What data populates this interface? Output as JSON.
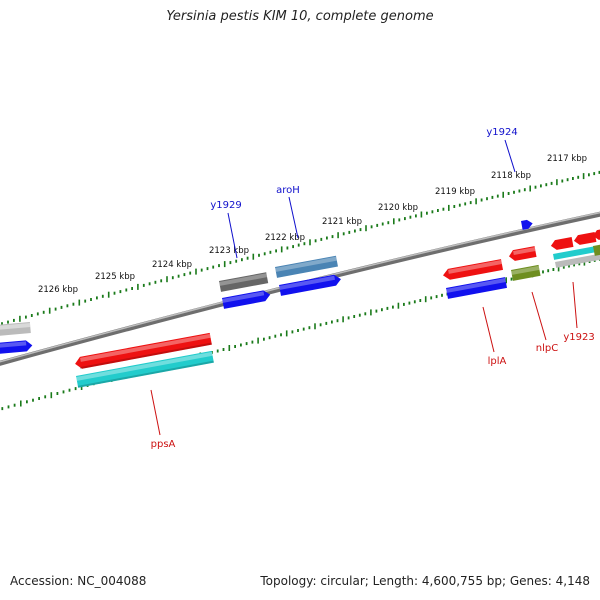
{
  "title": "Yersinia pestis KIM 10, complete genome",
  "footer": {
    "accession_text": "Accession: NC_004088",
    "summary_text": "Topology: circular; Length: 4,600,755 bp; Genes: 4,148"
  },
  "colors": {
    "backbone": "#8a8a8a",
    "tick": "#1a7a1a",
    "plus_label": "#1010cc",
    "minus_label": "#cc1111",
    "red": "#ee1111",
    "blue": "#1111ee",
    "cyan": "#22cccc",
    "gray": "#666666",
    "lightgray": "#bbbbbb",
    "steel": "#4a84b4",
    "olive": "#6e8e20"
  },
  "kbp_labels": [
    "2117 kbp",
    "2118 kbp",
    "2119 kbp",
    "2120 kbp",
    "2121 kbp",
    "2122 kbp",
    "2123 kbp",
    "2124 kbp",
    "2125 kbp",
    "2126 kbp"
  ],
  "gene_labels": {
    "y1924": "y1924",
    "aroH": "aroH",
    "y1929": "y1929",
    "lplA": "lplA",
    "nlpC": "nlpC",
    "y1923": "y1923",
    "ppsA": "ppsA"
  },
  "features": [
    {
      "id": "ppsA",
      "strand": "minus",
      "color": "red"
    },
    {
      "id": "ppsA-cds",
      "strand": "minus",
      "color": "cyan"
    },
    {
      "id": "y1929",
      "strand": "plus",
      "color": "gray"
    },
    {
      "id": "y1929-cds",
      "strand": "plus",
      "color": "blue"
    },
    {
      "id": "aroH",
      "strand": "plus",
      "color": "steel"
    },
    {
      "id": "aroH-cds",
      "strand": "plus",
      "color": "blue"
    },
    {
      "id": "lplA",
      "strand": "minus",
      "color": "red"
    },
    {
      "id": "lplA-cds",
      "strand": "minus",
      "color": "blue"
    },
    {
      "id": "nlpC",
      "strand": "minus",
      "color": "red"
    },
    {
      "id": "nlpC-cds",
      "strand": "minus",
      "color": "olive"
    },
    {
      "id": "y1924-cds",
      "strand": "plus",
      "color": "blue"
    },
    {
      "id": "y1923",
      "strand": "minus",
      "color": "cyan"
    },
    {
      "id": "y1923-cds",
      "strand": "minus",
      "color": "lightgray"
    },
    {
      "id": "right-gene-1",
      "strand": "minus",
      "color": "red"
    },
    {
      "id": "right-gene-2",
      "strand": "minus",
      "color": "red"
    },
    {
      "id": "right-gene-3",
      "strand": "minus",
      "color": "olive"
    },
    {
      "id": "left-gene-1",
      "strand": "plus",
      "color": "lightgray"
    },
    {
      "id": "left-gene-2",
      "strand": "plus",
      "color": "blue"
    }
  ]
}
